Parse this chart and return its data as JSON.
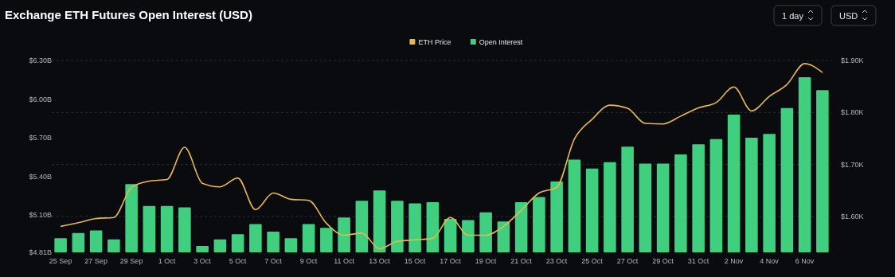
{
  "chart_data": {
    "type": "bar",
    "title": "Exchange ETH Futures Open Interest (USD)",
    "annotations": [
      "1 day",
      "USD"
    ],
    "categories": [
      "25 Sep",
      null,
      "27 Sep",
      null,
      "29 Sep",
      null,
      "1 Oct",
      null,
      "3 Oct",
      null,
      "5 Oct",
      null,
      "7 Oct",
      null,
      "9 Oct",
      null,
      "11 Oct",
      null,
      "13 Oct",
      null,
      "15 Oct",
      null,
      "17 Oct",
      null,
      "19 Oct",
      null,
      "21 Oct",
      null,
      "23 Oct",
      null,
      "25 Oct",
      null,
      "27 Oct",
      null,
      "29 Oct",
      null,
      "31 Oct",
      null,
      "2 Nov",
      null,
      "4 Nov",
      null,
      "6 Nov",
      null
    ],
    "series": [
      {
        "name": "ETH Price",
        "type": "line",
        "axis": "y2",
        "color": "#e9b949",
        "values": [
          1581,
          1588,
          1596,
          1598,
          1656,
          1668,
          1671,
          1733,
          1664,
          1657,
          1674,
          1613,
          1645,
          1633,
          1631,
          1587,
          1564,
          1568,
          1538,
          1552,
          1555,
          1558,
          1598,
          1564,
          1564,
          1581,
          1612,
          1645,
          1656,
          1749,
          1787,
          1814,
          1808,
          1779,
          1778,
          1793,
          1809,
          1819,
          1849,
          1803,
          1831,
          1854,
          1894,
          1877
        ]
      },
      {
        "name": "Open Interest",
        "color": "#3fcf7f",
        "values": [
          4.92,
          4.96,
          4.98,
          4.91,
          5.34,
          5.17,
          5.17,
          5.16,
          4.86,
          4.91,
          4.95,
          5.03,
          4.97,
          4.92,
          5.03,
          5.0,
          5.08,
          5.21,
          5.29,
          5.21,
          5.19,
          5.2,
          5.07,
          5.06,
          5.12,
          5.05,
          5.2,
          5.24,
          5.36,
          5.53,
          5.46,
          5.51,
          5.63,
          5.5,
          5.5,
          5.57,
          5.65,
          5.69,
          5.88,
          5.7,
          5.73,
          5.93,
          6.17,
          6.07
        ]
      }
    ],
    "ylim": [
      4.81,
      6.3
    ],
    "yticks": [
      {
        "value": 4.81,
        "label": "$4.81B"
      },
      {
        "value": 5.1,
        "label": "$5.10B"
      },
      {
        "value": 5.4,
        "label": "$5.40B"
      },
      {
        "value": 5.7,
        "label": "$5.70B"
      },
      {
        "value": 6.0,
        "label": "$6.00B"
      },
      {
        "value": 6.3,
        "label": "$6.30B"
      }
    ],
    "y2lim": [
      1531,
      1900
    ],
    "y2ticks": [
      {
        "value": 1600,
        "label": "$1.60K"
      },
      {
        "value": 1700,
        "label": "$1.70K"
      },
      {
        "value": 1800,
        "label": "$1.80K"
      },
      {
        "value": 1900,
        "label": "$1.90K"
      }
    ],
    "grid": "y2",
    "legend": "top",
    "marker": "none",
    "line_style": "solid"
  }
}
